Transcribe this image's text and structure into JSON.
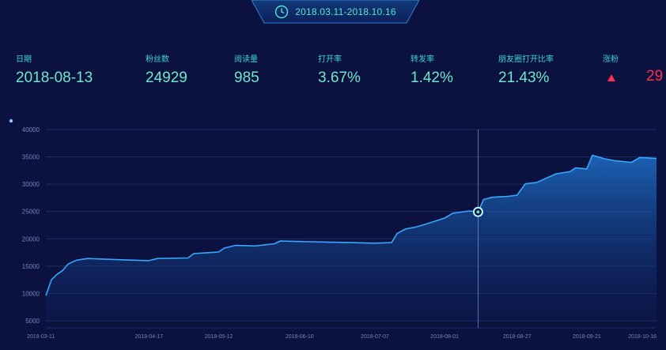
{
  "header": {
    "date_range": "2018.03.11-2018.10.16",
    "icon": "clock-icon"
  },
  "stats": [
    {
      "label": "日期",
      "value": "2018-08-13"
    },
    {
      "label": "粉丝数",
      "value": "24929"
    },
    {
      "label": "阅读量",
      "value": "985"
    },
    {
      "label": "打开率",
      "value": "3.67%"
    },
    {
      "label": "转发率",
      "value": "1.42%"
    },
    {
      "label": "朋友圈打开比率",
      "value": "21.43%"
    }
  ],
  "change": {
    "label": "涨粉",
    "value": "29",
    "icon": "triangle-up-icon",
    "color": "#ff2e4d"
  },
  "colors": {
    "accent": "#58e6c8",
    "line": "#37a6ff",
    "background": "#0b1240"
  },
  "chart_data": {
    "type": "area",
    "ylim": [
      5000,
      40000
    ],
    "yticks": [
      5000,
      10000,
      15000,
      20000,
      25000,
      30000,
      35000,
      40000
    ],
    "x_labels": [
      "2018-03-11",
      "2018-04-17",
      "2018-05-12",
      "2018-06-10",
      "2018-07-07",
      "2018-08-01",
      "2018-08-27",
      "2018-09-21",
      "2018-10-16"
    ],
    "grid": true,
    "highlight": {
      "x": "2018-08-13",
      "y": 24929
    },
    "series": [
      {
        "values": [
          [
            "2018-03-11",
            9600
          ],
          [
            "2018-03-13",
            12500
          ],
          [
            "2018-03-15",
            13500
          ],
          [
            "2018-03-17",
            14200
          ],
          [
            "2018-03-19",
            15400
          ],
          [
            "2018-03-22",
            16100
          ],
          [
            "2018-03-26",
            16400
          ],
          [
            "2018-04-05",
            16200
          ],
          [
            "2018-04-17",
            16000
          ],
          [
            "2018-04-20",
            16400
          ],
          [
            "2018-05-01",
            16500
          ],
          [
            "2018-05-03",
            17300
          ],
          [
            "2018-05-12",
            17600
          ],
          [
            "2018-05-14",
            18300
          ],
          [
            "2018-05-18",
            18800
          ],
          [
            "2018-05-25",
            18700
          ],
          [
            "2018-06-01",
            19100
          ],
          [
            "2018-06-03",
            19600
          ],
          [
            "2018-06-10",
            19500
          ],
          [
            "2018-06-20",
            19400
          ],
          [
            "2018-06-29",
            19300
          ],
          [
            "2018-07-07",
            19200
          ],
          [
            "2018-07-13",
            19300
          ],
          [
            "2018-07-15",
            21000
          ],
          [
            "2018-07-18",
            21800
          ],
          [
            "2018-07-22",
            22200
          ],
          [
            "2018-07-26",
            22800
          ],
          [
            "2018-08-01",
            23800
          ],
          [
            "2018-08-04",
            24700
          ],
          [
            "2018-08-10",
            25100
          ],
          [
            "2018-08-13",
            24929
          ],
          [
            "2018-08-15",
            27200
          ],
          [
            "2018-08-18",
            27600
          ],
          [
            "2018-08-24",
            27800
          ],
          [
            "2018-08-27",
            28000
          ],
          [
            "2018-08-30",
            30100
          ],
          [
            "2018-09-03",
            30300
          ],
          [
            "2018-09-06",
            31000
          ],
          [
            "2018-09-10",
            31900
          ],
          [
            "2018-09-15",
            32300
          ],
          [
            "2018-09-17",
            33000
          ],
          [
            "2018-09-21",
            32800
          ],
          [
            "2018-09-23",
            35300
          ],
          [
            "2018-09-27",
            34700
          ],
          [
            "2018-10-01",
            34300
          ],
          [
            "2018-10-07",
            34000
          ],
          [
            "2018-10-10",
            34900
          ],
          [
            "2018-10-16",
            34700
          ]
        ]
      }
    ]
  }
}
